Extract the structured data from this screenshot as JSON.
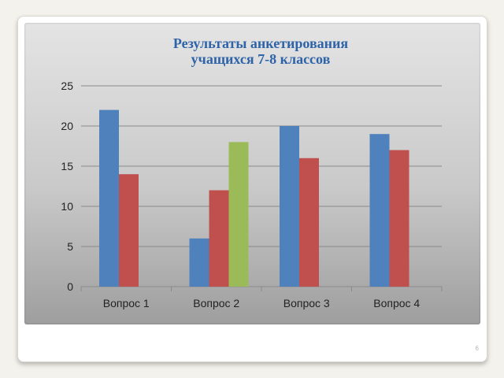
{
  "slide": {
    "page_number": "6"
  },
  "chart_data": {
    "type": "bar",
    "title_lines": [
      "Результаты анкетирования",
      "учащихся 7-8 классов"
    ],
    "categories": [
      "Вопрос 1",
      "Вопрос  2",
      "Вопрос 3",
      "Вопрос 4"
    ],
    "series": [
      {
        "values": [
          22,
          6,
          20,
          19
        ],
        "color": "#4f81bd"
      },
      {
        "values": [
          14,
          12,
          16,
          17
        ],
        "color": "#c0504d"
      },
      {
        "values": [
          null,
          18,
          null,
          null
        ],
        "color": "#9bbb59"
      }
    ],
    "ylim": [
      0,
      25
    ],
    "yticks": [
      0,
      5,
      10,
      15,
      20,
      25
    ],
    "grid": true,
    "legend": "none"
  }
}
